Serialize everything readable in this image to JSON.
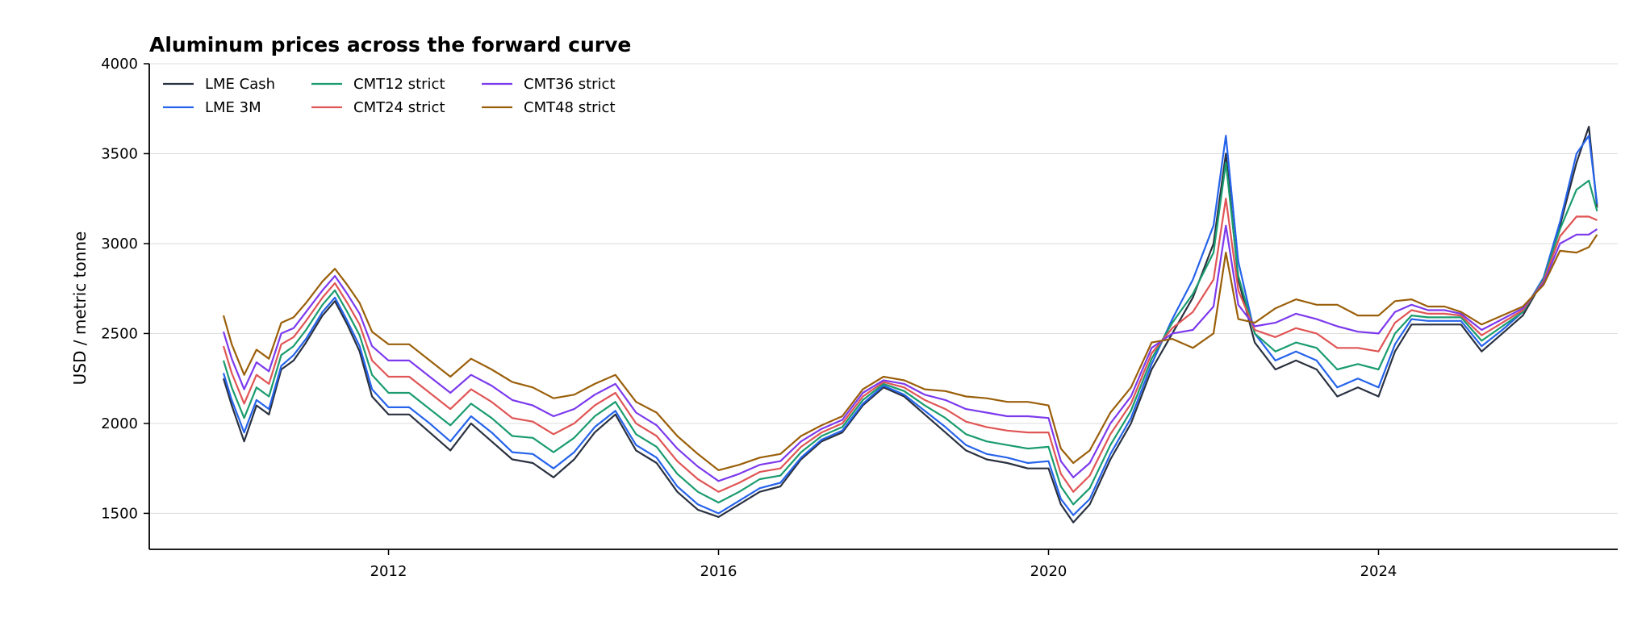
{
  "chart_data": {
    "type": "line",
    "title": "Aluminum prices across the forward curve",
    "xlabel": "",
    "ylabel": "USD / metric tonne",
    "xlim": [
      2009.1,
      2026.9
    ],
    "ylim": [
      1300,
      4000
    ],
    "yticks": [
      1500,
      2000,
      2500,
      3000,
      3500,
      4000
    ],
    "xticks": [
      2012,
      2016,
      2020,
      2024
    ],
    "xtick_labels": [
      "2012",
      "2016",
      "2020",
      "2024"
    ],
    "grid": "y",
    "legend_position": "top-left",
    "series": [
      {
        "name": "LME Cash",
        "color": "#2a3140",
        "x": [
          2010.0,
          2010.1,
          2010.25,
          2010.4,
          2010.55,
          2010.7,
          2010.85,
          2011.0,
          2011.2,
          2011.35,
          2011.5,
          2011.65,
          2011.8,
          2012.0,
          2012.25,
          2012.5,
          2012.75,
          2013.0,
          2013.25,
          2013.5,
          2013.75,
          2014.0,
          2014.25,
          2014.5,
          2014.75,
          2015.0,
          2015.25,
          2015.5,
          2015.75,
          2016.0,
          2016.25,
          2016.5,
          2016.75,
          2017.0,
          2017.25,
          2017.5,
          2017.75,
          2018.0,
          2018.25,
          2018.5,
          2018.75,
          2019.0,
          2019.25,
          2019.5,
          2019.75,
          2020.0,
          2020.15,
          2020.3,
          2020.5,
          2020.75,
          2021.0,
          2021.25,
          2021.5,
          2021.75,
          2022.0,
          2022.15,
          2022.3,
          2022.5,
          2022.75,
          2023.0,
          2023.25,
          2023.5,
          2023.75,
          2024.0,
          2024.2,
          2024.4,
          2024.6,
          2024.8,
          2025.0,
          2025.25,
          2025.5,
          2025.75,
          2026.0,
          2026.2,
          2026.4,
          2026.55,
          2026.65
        ],
        "y": [
          2250,
          2100,
          1900,
          2100,
          2050,
          2300,
          2350,
          2450,
          2600,
          2680,
          2550,
          2400,
          2150,
          2050,
          2050,
          1950,
          1850,
          2000,
          1900,
          1800,
          1780,
          1700,
          1800,
          1950,
          2050,
          1850,
          1780,
          1620,
          1520,
          1480,
          1550,
          1620,
          1650,
          1800,
          1900,
          1950,
          2100,
          2200,
          2150,
          2050,
          1950,
          1850,
          1800,
          1780,
          1750,
          1750,
          1550,
          1450,
          1550,
          1800,
          2000,
          2300,
          2500,
          2700,
          3000,
          3500,
          2800,
          2450,
          2300,
          2350,
          2300,
          2150,
          2200,
          2150,
          2400,
          2550,
          2550,
          2550,
          2550,
          2400,
          2500,
          2600,
          2800,
          3100,
          3450,
          3650,
          3200
        ]
      },
      {
        "name": "LME 3M",
        "color": "#2563eb",
        "x": [
          2010.0,
          2010.1,
          2010.25,
          2010.4,
          2010.55,
          2010.7,
          2010.85,
          2011.0,
          2011.2,
          2011.35,
          2011.5,
          2011.65,
          2011.8,
          2012.0,
          2012.25,
          2012.5,
          2012.75,
          2013.0,
          2013.25,
          2013.5,
          2013.75,
          2014.0,
          2014.25,
          2014.5,
          2014.75,
          2015.0,
          2015.25,
          2015.5,
          2015.75,
          2016.0,
          2016.25,
          2016.5,
          2016.75,
          2017.0,
          2017.25,
          2017.5,
          2017.75,
          2018.0,
          2018.25,
          2018.5,
          2018.75,
          2019.0,
          2019.25,
          2019.5,
          2019.75,
          2020.0,
          2020.15,
          2020.3,
          2020.5,
          2020.75,
          2021.0,
          2021.25,
          2021.5,
          2021.75,
          2022.0,
          2022.15,
          2022.3,
          2022.5,
          2022.75,
          2023.0,
          2023.25,
          2023.5,
          2023.75,
          2024.0,
          2024.2,
          2024.4,
          2024.6,
          2024.8,
          2025.0,
          2025.25,
          2025.5,
          2025.75,
          2026.0,
          2026.2,
          2026.4,
          2026.55,
          2026.65
        ],
        "y": [
          2280,
          2130,
          1950,
          2130,
          2080,
          2320,
          2380,
          2470,
          2620,
          2700,
          2570,
          2430,
          2190,
          2090,
          2090,
          2000,
          1900,
          2040,
          1950,
          1840,
          1830,
          1750,
          1840,
          1980,
          2070,
          1880,
          1810,
          1650,
          1550,
          1500,
          1570,
          1640,
          1670,
          1810,
          1910,
          1960,
          2110,
          2210,
          2160,
          2070,
          1980,
          1880,
          1830,
          1810,
          1780,
          1790,
          1580,
          1490,
          1580,
          1830,
          2030,
          2330,
          2580,
          2800,
          3100,
          3600,
          2900,
          2500,
          2350,
          2400,
          2350,
          2200,
          2250,
          2200,
          2440,
          2580,
          2570,
          2570,
          2570,
          2430,
          2520,
          2620,
          2810,
          3120,
          3500,
          3600,
          3220
        ]
      },
      {
        "name": "CMT12 strict",
        "color": "#1a9c6e",
        "x": [
          2010.0,
          2010.1,
          2010.25,
          2010.4,
          2010.55,
          2010.7,
          2010.85,
          2011.0,
          2011.2,
          2011.35,
          2011.5,
          2011.65,
          2011.8,
          2012.0,
          2012.25,
          2012.5,
          2012.75,
          2013.0,
          2013.25,
          2013.5,
          2013.75,
          2014.0,
          2014.25,
          2014.5,
          2014.75,
          2015.0,
          2015.25,
          2015.5,
          2015.75,
          2016.0,
          2016.25,
          2016.5,
          2016.75,
          2017.0,
          2017.25,
          2017.5,
          2017.75,
          2018.0,
          2018.25,
          2018.5,
          2018.75,
          2019.0,
          2019.25,
          2019.5,
          2019.75,
          2020.0,
          2020.15,
          2020.3,
          2020.5,
          2020.75,
          2021.0,
          2021.25,
          2021.5,
          2021.75,
          2022.0,
          2022.15,
          2022.3,
          2022.5,
          2022.75,
          2023.0,
          2023.25,
          2023.5,
          2023.75,
          2024.0,
          2024.2,
          2024.4,
          2024.6,
          2024.8,
          2025.0,
          2025.25,
          2025.5,
          2025.75,
          2026.0,
          2026.2,
          2026.4,
          2026.55,
          2026.65
        ],
        "y": [
          2350,
          2200,
          2030,
          2200,
          2150,
          2380,
          2430,
          2520,
          2660,
          2740,
          2620,
          2490,
          2270,
          2170,
          2170,
          2080,
          1990,
          2110,
          2030,
          1930,
          1920,
          1840,
          1920,
          2040,
          2120,
          1940,
          1870,
          1720,
          1620,
          1560,
          1620,
          1690,
          1710,
          1840,
          1930,
          1980,
          2130,
          2220,
          2180,
          2100,
          2030,
          1940,
          1900,
          1880,
          1860,
          1870,
          1650,
          1550,
          1640,
          1880,
          2070,
          2360,
          2560,
          2720,
          2950,
          3450,
          2820,
          2500,
          2400,
          2450,
          2420,
          2300,
          2330,
          2300,
          2500,
          2600,
          2590,
          2590,
          2590,
          2460,
          2540,
          2620,
          2800,
          3080,
          3300,
          3350,
          3180
        ]
      },
      {
        "name": "CMT24 strict",
        "color": "#e05555",
        "x": [
          2010.0,
          2010.1,
          2010.25,
          2010.4,
          2010.55,
          2010.7,
          2010.85,
          2011.0,
          2011.2,
          2011.35,
          2011.5,
          2011.65,
          2011.8,
          2012.0,
          2012.25,
          2012.5,
          2012.75,
          2013.0,
          2013.25,
          2013.5,
          2013.75,
          2014.0,
          2014.25,
          2014.5,
          2014.75,
          2015.0,
          2015.25,
          2015.5,
          2015.75,
          2016.0,
          2016.25,
          2016.5,
          2016.75,
          2017.0,
          2017.25,
          2017.5,
          2017.75,
          2018.0,
          2018.25,
          2018.5,
          2018.75,
          2019.0,
          2019.25,
          2019.5,
          2019.75,
          2020.0,
          2020.15,
          2020.3,
          2020.5,
          2020.75,
          2021.0,
          2021.25,
          2021.5,
          2021.75,
          2022.0,
          2022.15,
          2022.3,
          2022.5,
          2022.75,
          2023.0,
          2023.25,
          2023.5,
          2023.75,
          2024.0,
          2024.2,
          2024.4,
          2024.6,
          2024.8,
          2025.0,
          2025.25,
          2025.5,
          2025.75,
          2026.0,
          2026.2,
          2026.4,
          2026.55,
          2026.65
        ],
        "y": [
          2430,
          2280,
          2110,
          2270,
          2220,
          2440,
          2480,
          2570,
          2700,
          2780,
          2670,
          2550,
          2350,
          2260,
          2260,
          2170,
          2080,
          2190,
          2120,
          2030,
          2010,
          1940,
          2000,
          2100,
          2170,
          2000,
          1930,
          1790,
          1690,
          1620,
          1670,
          1730,
          1750,
          1870,
          1950,
          2000,
          2150,
          2230,
          2200,
          2130,
          2080,
          2010,
          1980,
          1960,
          1950,
          1950,
          1720,
          1620,
          1710,
          1940,
          2110,
          2390,
          2530,
          2620,
          2800,
          3250,
          2740,
          2520,
          2480,
          2530,
          2500,
          2420,
          2420,
          2400,
          2560,
          2630,
          2610,
          2610,
          2600,
          2490,
          2560,
          2630,
          2790,
          3040,
          3150,
          3150,
          3130
        ]
      },
      {
        "name": "CMT36 strict",
        "color": "#7c3aed",
        "x": [
          2010.0,
          2010.1,
          2010.25,
          2010.4,
          2010.55,
          2010.7,
          2010.85,
          2011.0,
          2011.2,
          2011.35,
          2011.5,
          2011.65,
          2011.8,
          2012.0,
          2012.25,
          2012.5,
          2012.75,
          2013.0,
          2013.25,
          2013.5,
          2013.75,
          2014.0,
          2014.25,
          2014.5,
          2014.75,
          2015.0,
          2015.25,
          2015.5,
          2015.75,
          2016.0,
          2016.25,
          2016.5,
          2016.75,
          2017.0,
          2017.25,
          2017.5,
          2017.75,
          2018.0,
          2018.25,
          2018.5,
          2018.75,
          2019.0,
          2019.25,
          2019.5,
          2019.75,
          2020.0,
          2020.15,
          2020.3,
          2020.5,
          2020.75,
          2021.0,
          2021.25,
          2021.5,
          2021.75,
          2022.0,
          2022.15,
          2022.3,
          2022.5,
          2022.75,
          2023.0,
          2023.25,
          2023.5,
          2023.75,
          2024.0,
          2024.2,
          2024.4,
          2024.6,
          2024.8,
          2025.0,
          2025.25,
          2025.5,
          2025.75,
          2026.0,
          2026.2,
          2026.4,
          2026.55,
          2026.65
        ],
        "y": [
          2510,
          2360,
          2190,
          2340,
          2290,
          2500,
          2530,
          2620,
          2740,
          2820,
          2720,
          2610,
          2430,
          2350,
          2350,
          2260,
          2170,
          2270,
          2210,
          2130,
          2100,
          2040,
          2080,
          2160,
          2220,
          2060,
          1990,
          1860,
          1760,
          1680,
          1720,
          1770,
          1790,
          1900,
          1970,
          2020,
          2170,
          2240,
          2220,
          2160,
          2130,
          2080,
          2060,
          2040,
          2040,
          2030,
          1790,
          1700,
          1780,
          2000,
          2150,
          2420,
          2500,
          2520,
          2650,
          3100,
          2660,
          2540,
          2560,
          2610,
          2580,
          2540,
          2510,
          2500,
          2620,
          2660,
          2630,
          2630,
          2610,
          2520,
          2580,
          2640,
          2780,
          3000,
          3050,
          3050,
          3080
        ]
      },
      {
        "name": "CMT48 strict",
        "color": "#9a5f0a",
        "x": [
          2010.0,
          2010.1,
          2010.25,
          2010.4,
          2010.55,
          2010.7,
          2010.85,
          2011.0,
          2011.2,
          2011.35,
          2011.5,
          2011.65,
          2011.8,
          2012.0,
          2012.25,
          2012.5,
          2012.75,
          2013.0,
          2013.25,
          2013.5,
          2013.75,
          2014.0,
          2014.25,
          2014.5,
          2014.75,
          2015.0,
          2015.25,
          2015.5,
          2015.75,
          2016.0,
          2016.25,
          2016.5,
          2016.75,
          2017.0,
          2017.25,
          2017.5,
          2017.75,
          2018.0,
          2018.25,
          2018.5,
          2018.75,
          2019.0,
          2019.25,
          2019.5,
          2019.75,
          2020.0,
          2020.15,
          2020.3,
          2020.5,
          2020.75,
          2021.0,
          2021.25,
          2021.5,
          2021.75,
          2022.0,
          2022.15,
          2022.3,
          2022.5,
          2022.75,
          2023.0,
          2023.25,
          2023.5,
          2023.75,
          2024.0,
          2024.2,
          2024.4,
          2024.6,
          2024.8,
          2025.0,
          2025.25,
          2025.5,
          2025.75,
          2026.0,
          2026.2,
          2026.4,
          2026.55,
          2026.65
        ],
        "y": [
          2600,
          2440,
          2270,
          2410,
          2360,
          2560,
          2590,
          2670,
          2790,
          2860,
          2770,
          2670,
          2510,
          2440,
          2440,
          2350,
          2260,
          2360,
          2300,
          2230,
          2200,
          2140,
          2160,
          2220,
          2270,
          2120,
          2060,
          1930,
          1830,
          1740,
          1770,
          1810,
          1830,
          1930,
          1990,
          2040,
          2190,
          2260,
          2240,
          2190,
          2180,
          2150,
          2140,
          2120,
          2120,
          2100,
          1860,
          1780,
          1850,
          2060,
          2200,
          2450,
          2470,
          2420,
          2500,
          2950,
          2580,
          2560,
          2640,
          2690,
          2660,
          2660,
          2600,
          2600,
          2680,
          2690,
          2650,
          2650,
          2620,
          2550,
          2600,
          2650,
          2770,
          2960,
          2950,
          2980,
          3050
        ]
      }
    ]
  }
}
